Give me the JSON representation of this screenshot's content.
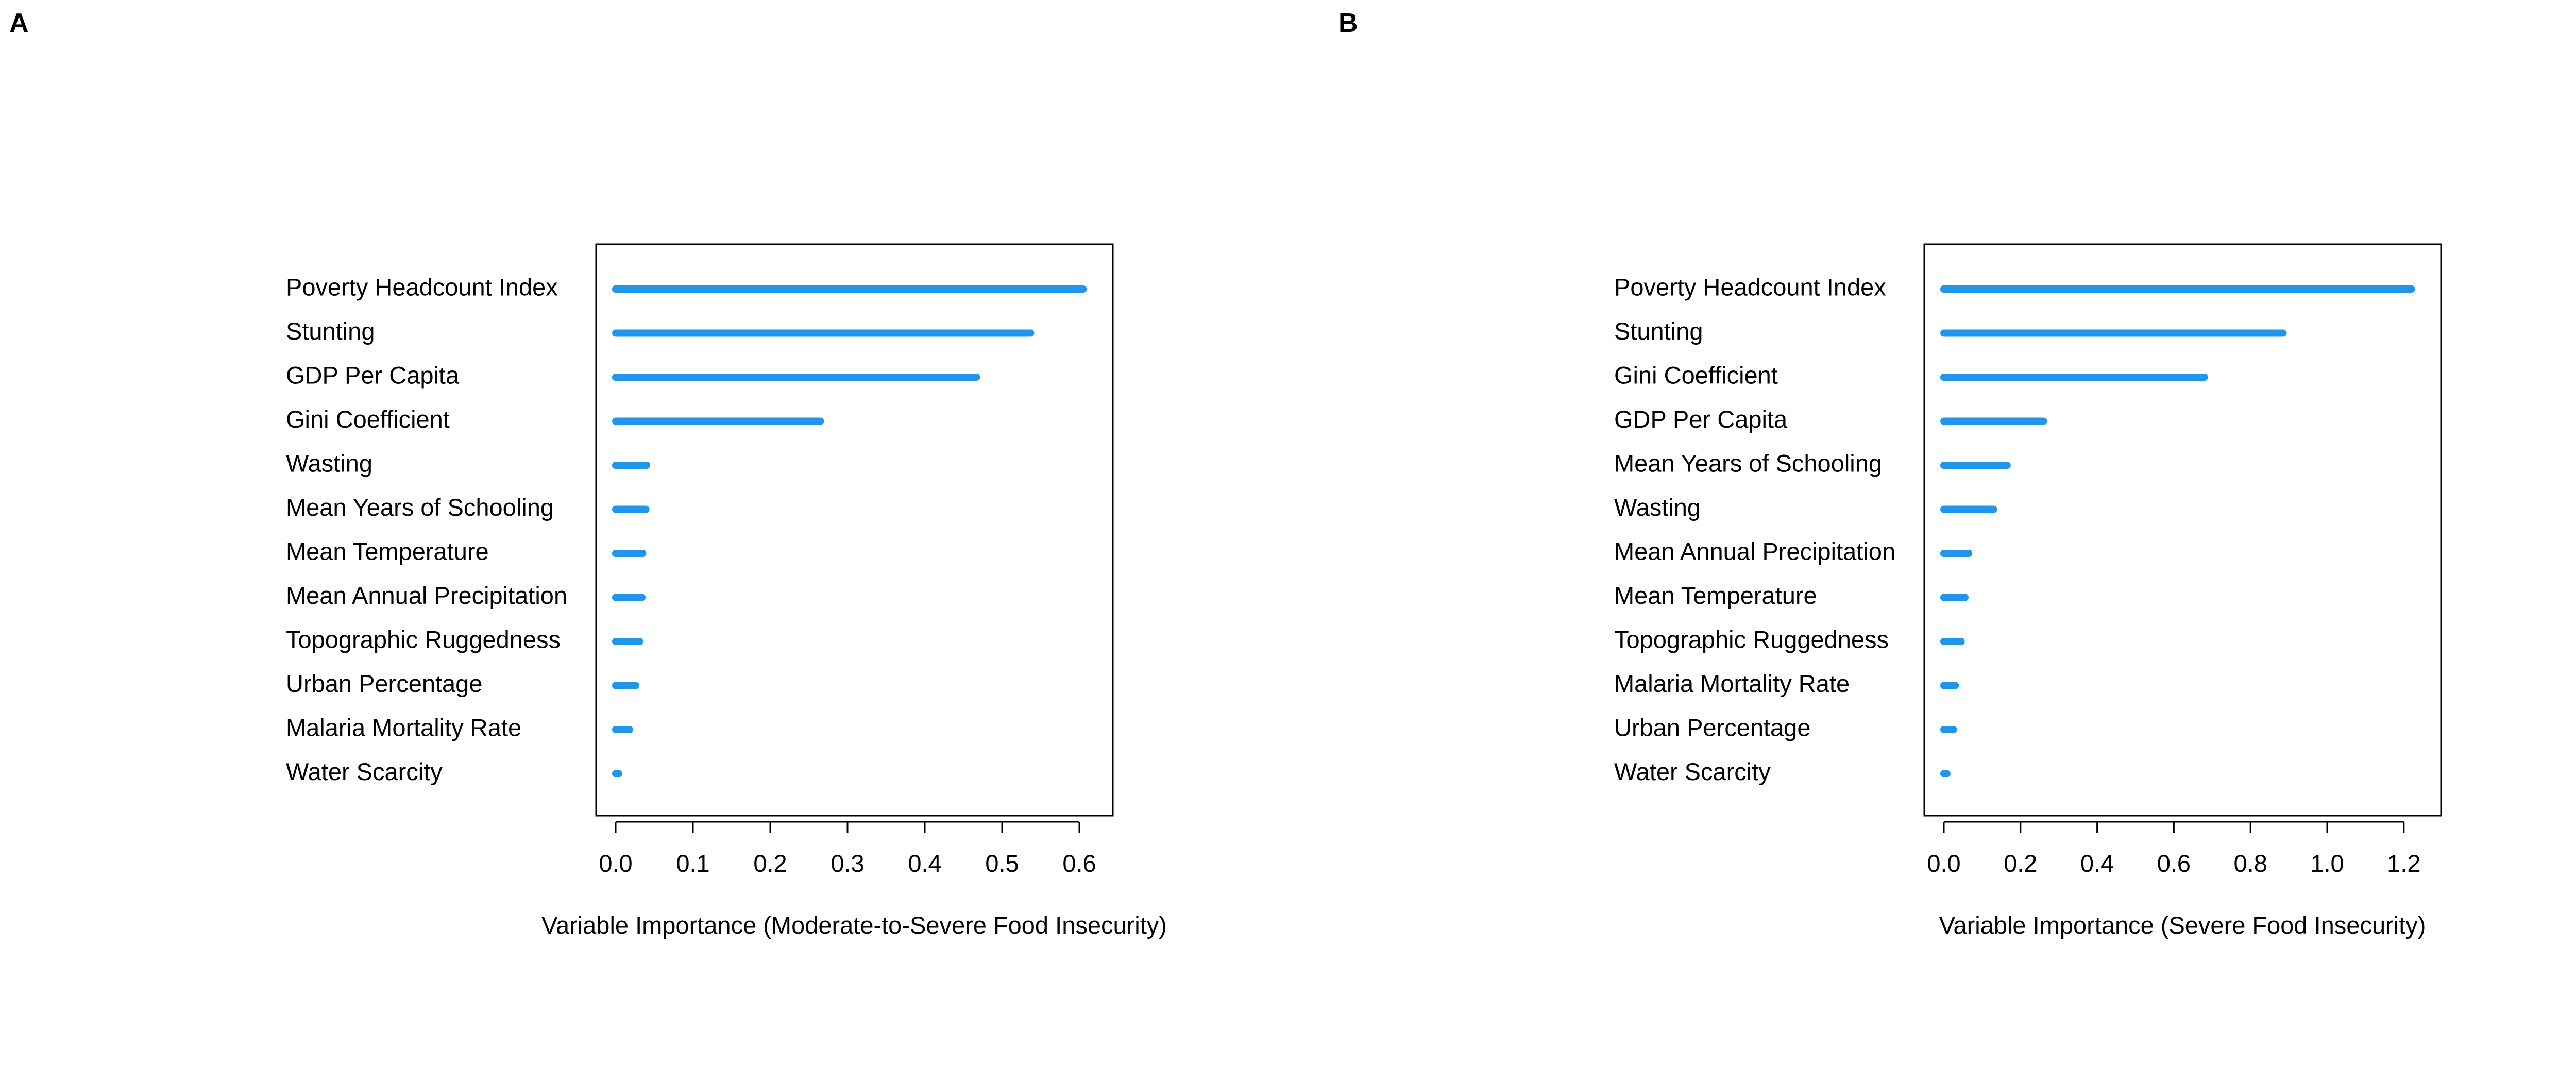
{
  "bar_color": "#2196E9",
  "chart_data": [
    {
      "type": "bar",
      "orientation": "horizontal",
      "panel_label": "A",
      "xlabel": "Variable Importance (Moderate-to-Severe Food Insecurity)",
      "xlim": [
        0,
        0.62
      ],
      "xticks": [
        "0.0",
        "0.1",
        "0.2",
        "0.3",
        "0.4",
        "0.5",
        "0.6"
      ],
      "xtick_values": [
        0.0,
        0.1,
        0.2,
        0.3,
        0.4,
        0.5,
        0.6
      ],
      "categories": [
        "Poverty Headcount Index",
        "Stunting",
        "GDP Per Capita",
        "Gini Coefficient",
        "Wasting",
        "Mean Years of Schooling",
        "Mean Temperature",
        "Mean Annual Precipitation",
        "Topographic Ruggedness",
        "Urban Percentage",
        "Malaria Mortality Rate",
        "Water Scarcity"
      ],
      "values": [
        0.605,
        0.537,
        0.467,
        0.265,
        0.04,
        0.039,
        0.035,
        0.034,
        0.031,
        0.026,
        0.018,
        0.004
      ],
      "grid": false,
      "legend": "none"
    },
    {
      "type": "bar",
      "orientation": "horizontal",
      "panel_label": "B",
      "xlabel": "Variable Importance (Severe Food Insecurity)",
      "xlim": [
        0,
        1.25
      ],
      "xticks": [
        "0.0",
        "0.2",
        "0.4",
        "0.6",
        "0.8",
        "1.0",
        "1.2"
      ],
      "xtick_values": [
        0.0,
        0.2,
        0.4,
        0.6,
        0.8,
        1.0,
        1.2
      ],
      "categories": [
        "Poverty Headcount Index",
        "Stunting",
        "Gini Coefficient",
        "GDP Per Capita",
        "Mean Years of Schooling",
        "Wasting",
        "Mean Annual Precipitation",
        "Mean Temperature",
        "Topographic Ruggedness",
        "Malaria Mortality Rate",
        "Urban Percentage",
        "Water Scarcity"
      ],
      "values": [
        1.22,
        0.885,
        0.68,
        0.26,
        0.165,
        0.13,
        0.065,
        0.055,
        0.045,
        0.03,
        0.025,
        0.008
      ],
      "grid": false,
      "legend": "none"
    }
  ]
}
